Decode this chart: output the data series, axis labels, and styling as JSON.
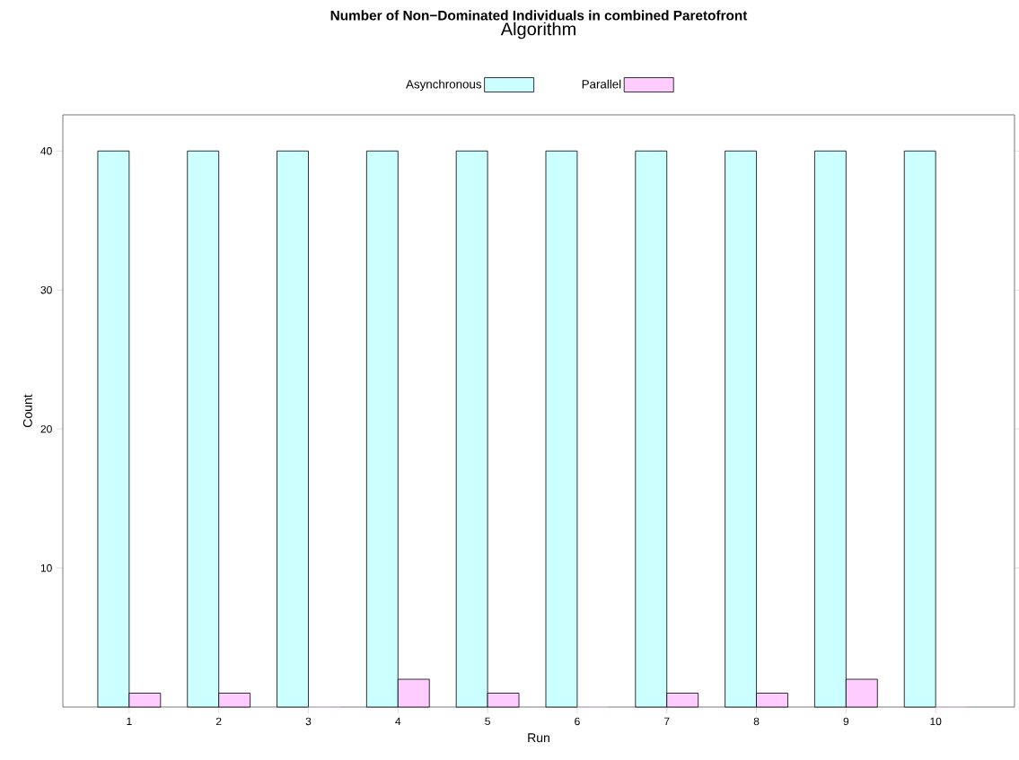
{
  "chart_data": {
    "type": "bar",
    "title": "Number of Non−Dominated Individuals in combined Paretofront",
    "legend_title": "Algorithm",
    "xlabel": "Run",
    "ylabel": "Count",
    "categories": [
      "1",
      "2",
      "3",
      "4",
      "5",
      "6",
      "7",
      "8",
      "9",
      "10"
    ],
    "series": [
      {
        "name": "Asynchronous",
        "color": "#ccffff",
        "values": [
          40,
          40,
          40,
          40,
          40,
          40,
          40,
          40,
          40,
          40
        ]
      },
      {
        "name": "Parallel",
        "color": "#ffccff",
        "values": [
          1,
          1,
          0,
          2,
          1,
          0,
          1,
          1,
          2,
          0
        ]
      }
    ],
    "ylim": [
      0,
      42.6
    ],
    "yticks": [
      10,
      20,
      30,
      40
    ],
    "legend": "top"
  }
}
